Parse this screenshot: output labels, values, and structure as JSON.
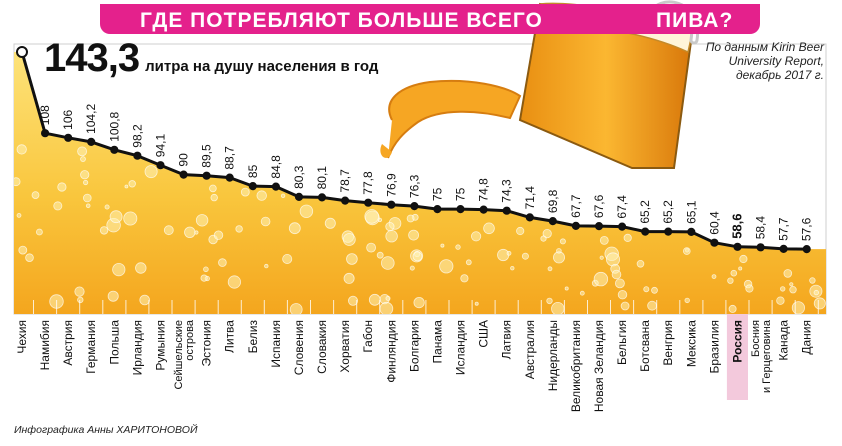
{
  "header": {
    "title_part1": "ГДЕ ПОТРЕБЛЯЮТ БОЛЬШЕ ВСЕГО",
    "title_part2": "ПИВА?"
  },
  "headline": {
    "value": "143,3",
    "unit_text": "литра на душу населения в год"
  },
  "source_lines": [
    "По данным Kirin Beer",
    "University Report,",
    "декабрь 2017 г."
  ],
  "credit": "Инфографика Анны ХАРИТОНОВОЙ",
  "colors": {
    "banner": "#e4218c",
    "highlight_band": "#f3c9dc",
    "beer_top": "#fde37a",
    "beer_bottom": "#f4a61e",
    "line": "#111111"
  },
  "chart_data": {
    "type": "line",
    "highlight_category": "Россия",
    "categories": [
      "Чехия",
      "Намибия",
      "Австрия",
      "Германия",
      "Польша",
      "Ирландия",
      "Румыния",
      "Сейшельские острова",
      "Эстония",
      "Литва",
      "Белиз",
      "Испания",
      "Словения",
      "Словакия",
      "Хорватия",
      "Габон",
      "Финляндия",
      "Болгария",
      "Панама",
      "Исландия",
      "США",
      "Латвия",
      "Австралия",
      "Нидерланды",
      "Великобритания",
      "Новая Зеландия",
      "Бельгия",
      "Ботсвана",
      "Венгрия",
      "Мексика",
      "Бразилия",
      "Россия",
      "Босния и Герцеговина",
      "Канада",
      "Дания"
    ],
    "category_lines": [
      [
        "Чехия"
      ],
      [
        "Намибия"
      ],
      [
        "Австрия"
      ],
      [
        "Германия"
      ],
      [
        "Польша"
      ],
      [
        "Ирландия"
      ],
      [
        "Румыния"
      ],
      [
        "Сейшельские",
        "острова"
      ],
      [
        "Эстония"
      ],
      [
        "Литва"
      ],
      [
        "Белиз"
      ],
      [
        "Испания"
      ],
      [
        "Словения"
      ],
      [
        "Словакия"
      ],
      [
        "Хорватия"
      ],
      [
        "Габон"
      ],
      [
        "Финляндия"
      ],
      [
        "Болгария"
      ],
      [
        "Панама"
      ],
      [
        "Исландия"
      ],
      [
        "США"
      ],
      [
        "Латвия"
      ],
      [
        "Австралия"
      ],
      [
        "Нидерланды"
      ],
      [
        "Великобритания"
      ],
      [
        "Новая Зеландия"
      ],
      [
        "Бельгия"
      ],
      [
        "Ботсвана"
      ],
      [
        "Венгрия"
      ],
      [
        "Мексика"
      ],
      [
        "Бразилия"
      ],
      [
        "Россия"
      ],
      [
        "Босния",
        "и Герцеговина"
      ],
      [
        "Канада"
      ],
      [
        "Дания"
      ]
    ],
    "values": [
      143.3,
      108,
      106,
      104.2,
      100.8,
      98.2,
      94.1,
      90,
      89.5,
      88.7,
      85,
      84.8,
      80.3,
      80.1,
      78.7,
      77.8,
      76.9,
      76.3,
      75,
      75,
      74.8,
      74.3,
      71.4,
      69.8,
      67.7,
      67.6,
      67.4,
      65.2,
      65.2,
      65.1,
      60.4,
      58.6,
      58.4,
      57.7,
      57.6
    ],
    "value_labels": [
      "143,3",
      "108",
      "106",
      "104,2",
      "100,8",
      "98,2",
      "94,1",
      "90",
      "89,5",
      "88,7",
      "85",
      "84,8",
      "80,3",
      "80,1",
      "78,7",
      "77,8",
      "76,9",
      "76,3",
      "75",
      "75",
      "74,8",
      "74,3",
      "71,4",
      "69,8",
      "67,7",
      "67,6",
      "67,4",
      "65,2",
      "65,2",
      "65,1",
      "60,4",
      "58,6",
      "58,4",
      "57,7",
      "57,6"
    ],
    "ylim": [
      0,
      150
    ],
    "grid": false,
    "legend": "none"
  }
}
